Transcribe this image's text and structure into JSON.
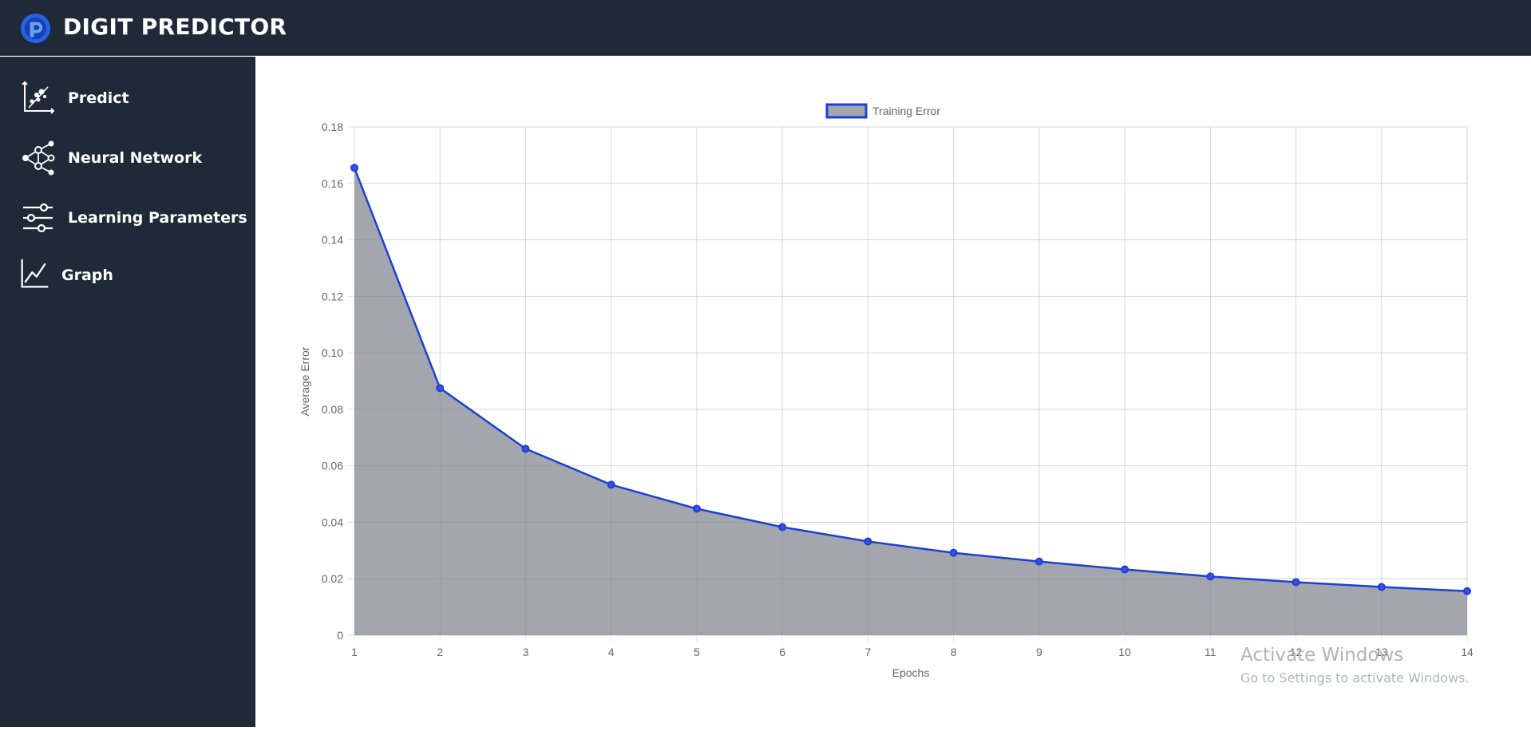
{
  "app": {
    "title": "DIGIT PREDICTOR"
  },
  "sidebar": {
    "items": [
      {
        "label": "Predict",
        "icon": "predict-scatter-icon"
      },
      {
        "label": "Neural Network",
        "icon": "neural-network-icon"
      },
      {
        "label": "Learning Parameters",
        "icon": "sliders-icon"
      },
      {
        "label": "Graph",
        "icon": "line-graph-icon"
      }
    ]
  },
  "colors": {
    "sidebar_bg": "#1f2937",
    "line": "#1d3fd8",
    "fill": "#a4a6ad",
    "grid": "#e5e5e5"
  },
  "chart_data": {
    "type": "area",
    "x": [
      1,
      2,
      3,
      4,
      5,
      6,
      7,
      8,
      9,
      10,
      11,
      12,
      13,
      14
    ],
    "series": [
      {
        "name": "Training Error",
        "values": [
          0.1655,
          0.0875,
          0.066,
          0.0533,
          0.0448,
          0.0383,
          0.0332,
          0.0292,
          0.0261,
          0.0233,
          0.0208,
          0.0188,
          0.0171,
          0.0156
        ]
      }
    ],
    "xlabel": "Epochs",
    "ylabel": "Average Error",
    "ylim": [
      0,
      0.18
    ],
    "xlim": [
      1,
      14
    ],
    "yticks": [
      "0",
      "0.02",
      "0.04",
      "0.06",
      "0.08",
      "0.10",
      "0.12",
      "0.14",
      "0.16",
      "0.18"
    ],
    "xticks": [
      "1",
      "2",
      "3",
      "4",
      "5",
      "6",
      "7",
      "8",
      "9",
      "10",
      "11",
      "12",
      "13",
      "14"
    ],
    "grid": true,
    "legend_position": "top-center"
  },
  "watermark": {
    "title": "Activate Windows",
    "subtitle": "Go to Settings to activate Windows."
  }
}
